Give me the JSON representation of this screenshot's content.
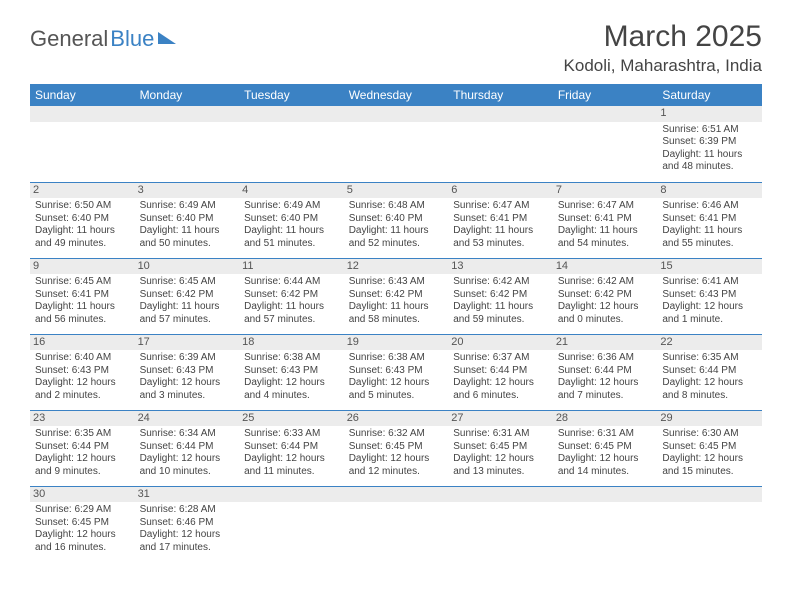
{
  "logo": {
    "text1": "General",
    "text2": "Blue"
  },
  "title": {
    "month": "March 2025",
    "location": "Kodoli, Maharashtra, India"
  },
  "colors": {
    "header_bg": "#3b82c4",
    "header_text": "#ffffff",
    "daynum_bg": "#ececec",
    "text": "#444444",
    "rule": "#3b82c4",
    "page_bg": "#ffffff"
  },
  "weekdays": [
    "Sunday",
    "Monday",
    "Tuesday",
    "Wednesday",
    "Thursday",
    "Friday",
    "Saturday"
  ],
  "weeks": [
    [
      null,
      null,
      null,
      null,
      null,
      null,
      {
        "d": "1",
        "sr": "6:51 AM",
        "ss": "6:39 PM",
        "dl": "11 hours and 48 minutes."
      }
    ],
    [
      {
        "d": "2",
        "sr": "6:50 AM",
        "ss": "6:40 PM",
        "dl": "11 hours and 49 minutes."
      },
      {
        "d": "3",
        "sr": "6:49 AM",
        "ss": "6:40 PM",
        "dl": "11 hours and 50 minutes."
      },
      {
        "d": "4",
        "sr": "6:49 AM",
        "ss": "6:40 PM",
        "dl": "11 hours and 51 minutes."
      },
      {
        "d": "5",
        "sr": "6:48 AM",
        "ss": "6:40 PM",
        "dl": "11 hours and 52 minutes."
      },
      {
        "d": "6",
        "sr": "6:47 AM",
        "ss": "6:41 PM",
        "dl": "11 hours and 53 minutes."
      },
      {
        "d": "7",
        "sr": "6:47 AM",
        "ss": "6:41 PM",
        "dl": "11 hours and 54 minutes."
      },
      {
        "d": "8",
        "sr": "6:46 AM",
        "ss": "6:41 PM",
        "dl": "11 hours and 55 minutes."
      }
    ],
    [
      {
        "d": "9",
        "sr": "6:45 AM",
        "ss": "6:41 PM",
        "dl": "11 hours and 56 minutes."
      },
      {
        "d": "10",
        "sr": "6:45 AM",
        "ss": "6:42 PM",
        "dl": "11 hours and 57 minutes."
      },
      {
        "d": "11",
        "sr": "6:44 AM",
        "ss": "6:42 PM",
        "dl": "11 hours and 57 minutes."
      },
      {
        "d": "12",
        "sr": "6:43 AM",
        "ss": "6:42 PM",
        "dl": "11 hours and 58 minutes."
      },
      {
        "d": "13",
        "sr": "6:42 AM",
        "ss": "6:42 PM",
        "dl": "11 hours and 59 minutes."
      },
      {
        "d": "14",
        "sr": "6:42 AM",
        "ss": "6:42 PM",
        "dl": "12 hours and 0 minutes."
      },
      {
        "d": "15",
        "sr": "6:41 AM",
        "ss": "6:43 PM",
        "dl": "12 hours and 1 minute."
      }
    ],
    [
      {
        "d": "16",
        "sr": "6:40 AM",
        "ss": "6:43 PM",
        "dl": "12 hours and 2 minutes."
      },
      {
        "d": "17",
        "sr": "6:39 AM",
        "ss": "6:43 PM",
        "dl": "12 hours and 3 minutes."
      },
      {
        "d": "18",
        "sr": "6:38 AM",
        "ss": "6:43 PM",
        "dl": "12 hours and 4 minutes."
      },
      {
        "d": "19",
        "sr": "6:38 AM",
        "ss": "6:43 PM",
        "dl": "12 hours and 5 minutes."
      },
      {
        "d": "20",
        "sr": "6:37 AM",
        "ss": "6:44 PM",
        "dl": "12 hours and 6 minutes."
      },
      {
        "d": "21",
        "sr": "6:36 AM",
        "ss": "6:44 PM",
        "dl": "12 hours and 7 minutes."
      },
      {
        "d": "22",
        "sr": "6:35 AM",
        "ss": "6:44 PM",
        "dl": "12 hours and 8 minutes."
      }
    ],
    [
      {
        "d": "23",
        "sr": "6:35 AM",
        "ss": "6:44 PM",
        "dl": "12 hours and 9 minutes."
      },
      {
        "d": "24",
        "sr": "6:34 AM",
        "ss": "6:44 PM",
        "dl": "12 hours and 10 minutes."
      },
      {
        "d": "25",
        "sr": "6:33 AM",
        "ss": "6:44 PM",
        "dl": "12 hours and 11 minutes."
      },
      {
        "d": "26",
        "sr": "6:32 AM",
        "ss": "6:45 PM",
        "dl": "12 hours and 12 minutes."
      },
      {
        "d": "27",
        "sr": "6:31 AM",
        "ss": "6:45 PM",
        "dl": "12 hours and 13 minutes."
      },
      {
        "d": "28",
        "sr": "6:31 AM",
        "ss": "6:45 PM",
        "dl": "12 hours and 14 minutes."
      },
      {
        "d": "29",
        "sr": "6:30 AM",
        "ss": "6:45 PM",
        "dl": "12 hours and 15 minutes."
      }
    ],
    [
      {
        "d": "30",
        "sr": "6:29 AM",
        "ss": "6:45 PM",
        "dl": "12 hours and 16 minutes."
      },
      {
        "d": "31",
        "sr": "6:28 AM",
        "ss": "6:46 PM",
        "dl": "12 hours and 17 minutes."
      },
      null,
      null,
      null,
      null,
      null
    ]
  ],
  "labels": {
    "sunrise": "Sunrise: ",
    "sunset": "Sunset: ",
    "daylight": "Daylight: "
  }
}
